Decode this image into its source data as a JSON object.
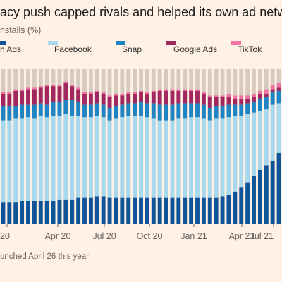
{
  "title": "acy push capped rivals and helped its own ad network t",
  "subtitle": "nstalls (%)",
  "footnote": "unched April 26 this year",
  "legend": [
    {
      "label": "h Ads",
      "color": "#0f5499"
    },
    {
      "label": "Facebook",
      "color": "#a7d8ee"
    },
    {
      "label": "Snap",
      "color": "#1f84c3"
    },
    {
      "label": "Google Ads",
      "color": "#a2275e"
    },
    {
      "label": "TikTok",
      "color": "#ef74a2"
    }
  ],
  "colors": {
    "other": "#d7cbbf",
    "apple": "#0f5499",
    "facebook": "#a7d8ee",
    "snap": "#1f84c3",
    "google": "#a2275e",
    "tiktok": "#ef74a2"
  },
  "chart_data": {
    "type": "bar",
    "stacked": true,
    "ylabel": "",
    "ylim": [
      0,
      100
    ],
    "x_tick_labels": [
      "20",
      "Apr 20",
      "Jul 20",
      "Oct 20",
      "Jan 21",
      "Apr 21",
      "Jul 21"
    ],
    "series": [
      {
        "name": "h Ads",
        "values": [
          14,
          14,
          14,
          15,
          15,
          15,
          15,
          15,
          15,
          16,
          16,
          16,
          17,
          17,
          17,
          18,
          18,
          17,
          17,
          17,
          17,
          17,
          17,
          17,
          17,
          17,
          17,
          17,
          17,
          17,
          17,
          17,
          17,
          17,
          17,
          18,
          19,
          21,
          24,
          27,
          31,
          35,
          38,
          41,
          46
        ]
      },
      {
        "name": "Facebook",
        "values": [
          53,
          53,
          54,
          53,
          54,
          53,
          55,
          54,
          55,
          54,
          55,
          54,
          53,
          52,
          52,
          52,
          51,
          50,
          51,
          52,
          53,
          53,
          53,
          52,
          51,
          50,
          50,
          50,
          51,
          51,
          52,
          52,
          51,
          50,
          51,
          50,
          50,
          49,
          46,
          44,
          41,
          38,
          36,
          36,
          32
        ]
      },
      {
        "name": "Snap",
        "values": [
          9,
          9,
          8,
          9,
          8,
          9,
          8,
          8,
          9,
          9,
          9,
          10,
          9,
          8,
          8,
          8,
          8,
          8,
          8,
          8,
          8,
          8,
          9,
          9,
          10,
          10,
          10,
          10,
          10,
          10,
          9,
          9,
          9,
          8,
          8,
          8,
          8,
          7,
          7,
          7,
          7,
          8,
          8,
          8,
          8
        ]
      },
      {
        "name": "Google Ads",
        "values": [
          8,
          8,
          10,
          9,
          10,
          10,
          10,
          12,
          10,
          10,
          11,
          9,
          8,
          7,
          7,
          7,
          7,
          7,
          7,
          6,
          6,
          6,
          6,
          6,
          7,
          9,
          9,
          9,
          8,
          8,
          8,
          8,
          7,
          7,
          6,
          6,
          5,
          4,
          4,
          3,
          3,
          3,
          2,
          2,
          2
        ]
      },
      {
        "name": "TikTok",
        "values": [
          1,
          1,
          1,
          1,
          1,
          1,
          1,
          1,
          1,
          1,
          1,
          1,
          1,
          1,
          1,
          1,
          1,
          1,
          1,
          1,
          1,
          1,
          1,
          1,
          1,
          1,
          1,
          1,
          1,
          1,
          1,
          1,
          1,
          1,
          1,
          1,
          2,
          2,
          2,
          2,
          2,
          2,
          3,
          3,
          3
        ]
      }
    ]
  }
}
